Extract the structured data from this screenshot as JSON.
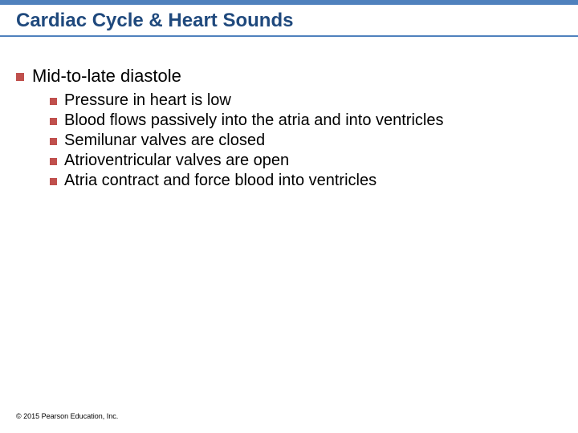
{
  "title": "Cardiac Cycle & Heart Sounds",
  "title_color": "#1f497d",
  "title_fontsize": 24,
  "header_bar_color": "#4f81bd",
  "underline_color": "#4f81bd",
  "bullet_color": "#c0504d",
  "l1_fontsize": 22,
  "l2_fontsize": 20,
  "bullets": {
    "main": "Mid-to-late diastole",
    "subs": [
      "Pressure in heart is low",
      "Blood flows passively into the atria and into ventricles",
      "Semilunar valves are closed",
      "Atrioventricular valves are open",
      "Atria contract and force blood into ventricles"
    ]
  },
  "copyright": "© 2015 Pearson Education, Inc.",
  "copyright_fontsize": 9,
  "background_color": "#ffffff"
}
